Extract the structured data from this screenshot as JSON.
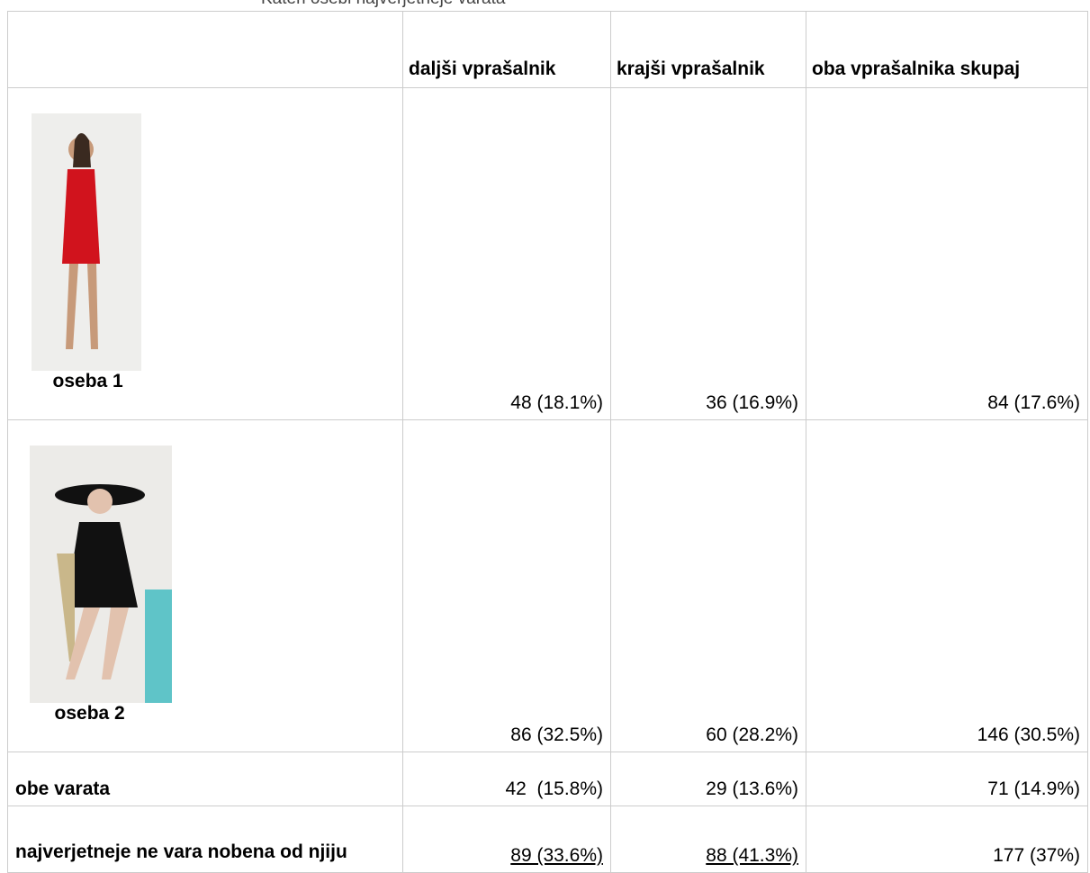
{
  "title": "Kateri osebi najverjetneje varata",
  "table": {
    "columns": [
      "daljši vprašalnik",
      "krajši vprašalnik",
      "oba vprašalnika skupaj"
    ],
    "rows": [
      {
        "label": "oseba 1",
        "cells": [
          "48 (18.1%)",
          "36 (16.9%)",
          "84 (17.6%)"
        ]
      },
      {
        "label": "oseba 2",
        "cells": [
          "86 (32.5%)",
          "60 (28.2%)",
          "146 (30.5%)"
        ]
      },
      {
        "label": "obe varata",
        "cells": [
          "42  (15.8%)",
          "29 (13.6%)",
          "71 (14.9%)"
        ]
      },
      {
        "label": "najverjetneje ne vara nobena od njiju",
        "cells": [
          "89 (33.6%)",
          "88 (41.3%)",
          "177 (37%)"
        ]
      }
    ]
  }
}
